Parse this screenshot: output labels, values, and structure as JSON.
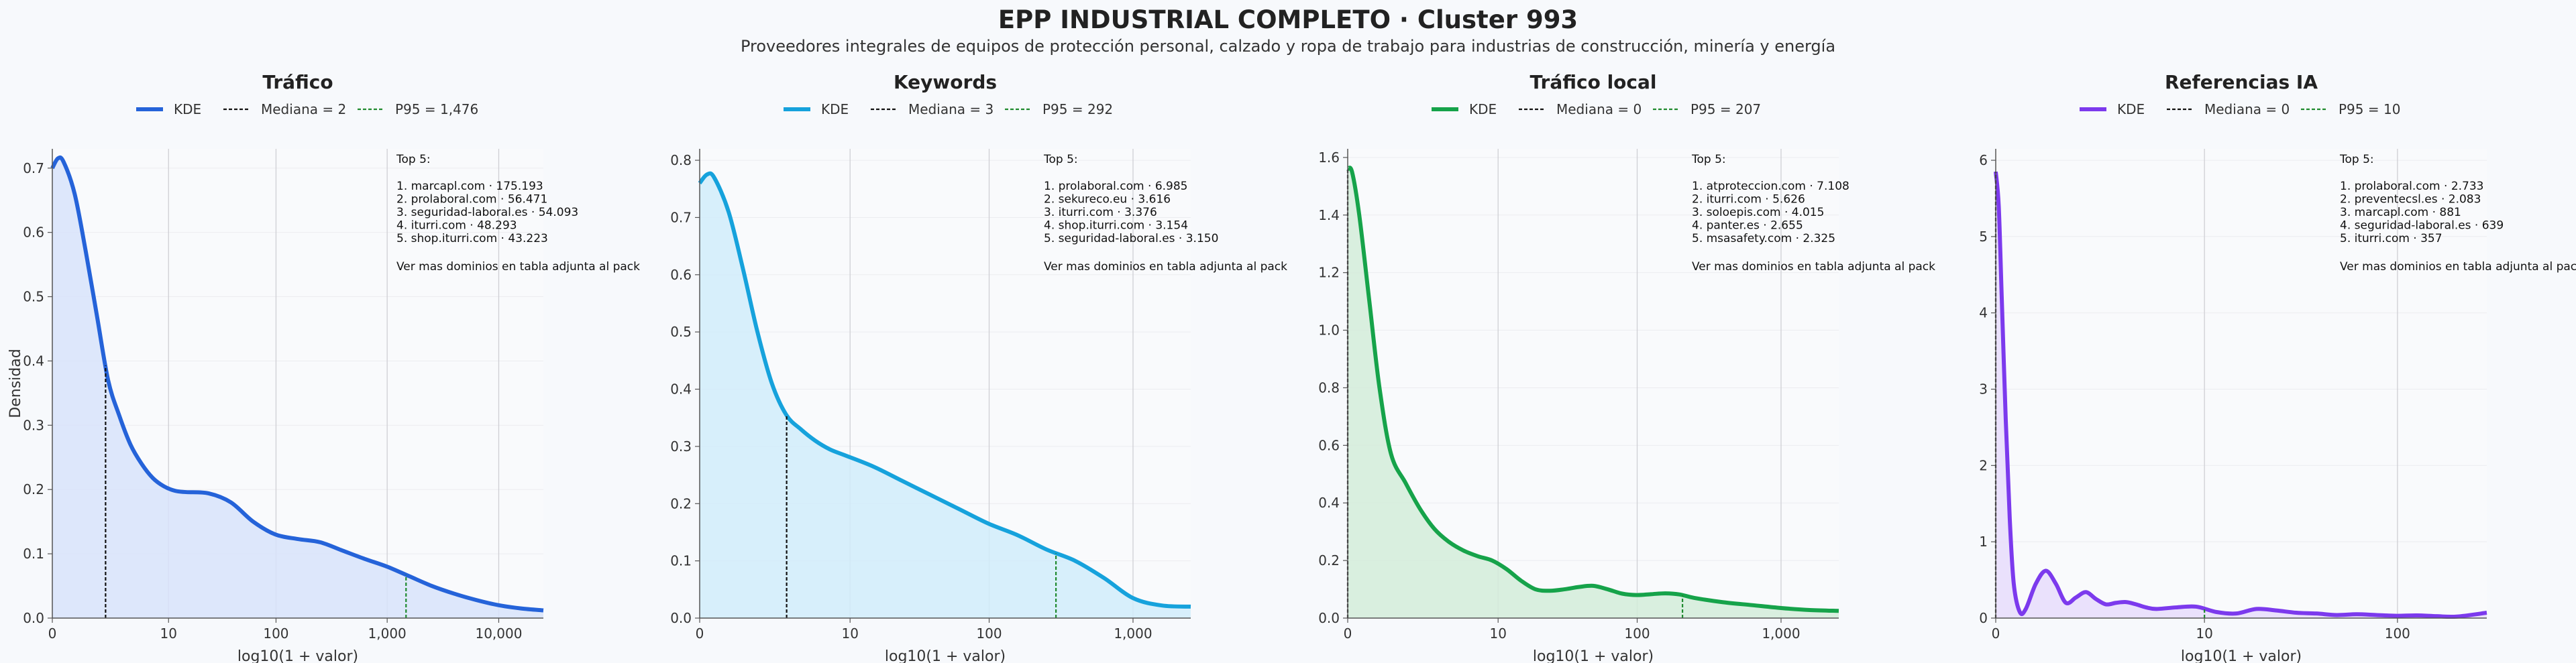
{
  "header": {
    "title": "EPP INDUSTRIAL COMPLETO · Cluster 993",
    "subtitle": "Proveedores integrales de equipos de protección personal, calzado y ropa de trabajo para industrias de construcción, minería y energía"
  },
  "chart_data": [
    {
      "type": "area",
      "title": "Tráfico",
      "xlabel": "log10(1 + valor)",
      "ylabel": "Densidad",
      "color": "#2563d9",
      "fill": "#d8e3fa",
      "x_scale": "log1p",
      "xlim": [
        0,
        4.4
      ],
      "ylim": [
        0,
        0.73
      ],
      "x_ticks": [
        0,
        10,
        100,
        1000,
        10000
      ],
      "x_tick_labels": [
        "0",
        "10",
        "100",
        "1,000",
        "10,000"
      ],
      "y_ticks": [
        0.0,
        0.1,
        0.2,
        0.3,
        0.4,
        0.5,
        0.6,
        0.7
      ],
      "y_tick_labels": [
        "0.0",
        "0.1",
        "0.2",
        "0.3",
        "0.4",
        "0.5",
        "0.6",
        "0.7"
      ],
      "grid": "vertical",
      "legend": [
        "KDE",
        "Mediana = 2",
        "P95 = 1,476"
      ],
      "median": 2,
      "p95": 1476,
      "series": [
        {
          "name": "KDE",
          "x": [
            0,
            0.05,
            0.1,
            0.2,
            0.3,
            0.4,
            0.5,
            0.6,
            0.7,
            0.8,
            0.9,
            1.0,
            1.1,
            1.2,
            1.4,
            1.6,
            1.8,
            2.0,
            2.2,
            2.4,
            2.6,
            2.8,
            3.0,
            3.2,
            3.4,
            3.6,
            3.8,
            4.0,
            4.2,
            4.4
          ],
          "y": [
            0.7,
            0.715,
            0.71,
            0.66,
            0.57,
            0.47,
            0.37,
            0.315,
            0.27,
            0.24,
            0.218,
            0.205,
            0.198,
            0.196,
            0.194,
            0.18,
            0.15,
            0.13,
            0.123,
            0.118,
            0.105,
            0.092,
            0.08,
            0.065,
            0.05,
            0.038,
            0.028,
            0.02,
            0.015,
            0.012
          ]
        }
      ],
      "annotation": {
        "heading": "Top 5:",
        "items": [
          "1. marcapl.com · 175.193",
          "2. prolaboral.com · 56.471",
          "3. seguridad-laboral.es · 54.093",
          "4. iturri.com · 48.293",
          "5. shop.iturri.com · 43.223"
        ],
        "footer": "Ver mas dominios en tabla adjunta al pack"
      }
    },
    {
      "type": "area",
      "title": "Keywords",
      "xlabel": "log10(1 + valor)",
      "ylabel": "",
      "color": "#16a2dc",
      "fill": "#d1ecfa",
      "x_scale": "log1p",
      "xlim": [
        0,
        3.4
      ],
      "ylim": [
        0,
        0.82
      ],
      "x_ticks": [
        0,
        10,
        100,
        1000
      ],
      "x_tick_labels": [
        "0",
        "10",
        "100",
        "1,000"
      ],
      "y_ticks": [
        0.0,
        0.1,
        0.2,
        0.3,
        0.4,
        0.5,
        0.6,
        0.7,
        0.8
      ],
      "y_tick_labels": [
        "0.0",
        "0.1",
        "0.2",
        "0.3",
        "0.4",
        "0.5",
        "0.6",
        "0.7",
        "0.8"
      ],
      "grid": "vertical",
      "legend": [
        "KDE",
        "Mediana = 3",
        "P95 = 292"
      ],
      "median": 3,
      "p95": 292,
      "series": [
        {
          "name": "KDE",
          "x": [
            0,
            0.05,
            0.1,
            0.2,
            0.3,
            0.4,
            0.5,
            0.6,
            0.7,
            0.8,
            0.9,
            1.0,
            1.2,
            1.4,
            1.6,
            1.8,
            2.0,
            2.2,
            2.4,
            2.6,
            2.8,
            3.0,
            3.2,
            3.4
          ],
          "y": [
            0.76,
            0.775,
            0.77,
            0.71,
            0.61,
            0.5,
            0.41,
            0.355,
            0.33,
            0.31,
            0.295,
            0.285,
            0.265,
            0.24,
            0.215,
            0.19,
            0.165,
            0.145,
            0.12,
            0.1,
            0.07,
            0.035,
            0.022,
            0.02
          ]
        }
      ],
      "annotation": {
        "heading": "Top 5:",
        "items": [
          "1. prolaboral.com · 6.985",
          "2. sekureco.eu · 3.616",
          "3. iturri.com · 3.376",
          "4. shop.iturri.com · 3.154",
          "5. seguridad-laboral.es · 3.150"
        ],
        "footer": "Ver mas dominios en tabla adjunta al pack"
      }
    },
    {
      "type": "area",
      "title": "Tráfico local",
      "xlabel": "log10(1 + valor)",
      "ylabel": "",
      "color": "#16a34a",
      "fill": "#d3ecd9",
      "x_scale": "log1p",
      "xlim": [
        0,
        3.4
      ],
      "ylim": [
        0,
        1.63
      ],
      "x_ticks": [
        0,
        10,
        100,
        1000
      ],
      "x_tick_labels": [
        "0",
        "10",
        "100",
        "1,000"
      ],
      "y_ticks": [
        0.0,
        0.2,
        0.4,
        0.6,
        0.8,
        1.0,
        1.2,
        1.4,
        1.6
      ],
      "y_tick_labels": [
        "0.0",
        "0.2",
        "0.4",
        "0.6",
        "0.8",
        "1.0",
        "1.2",
        "1.4",
        "1.6"
      ],
      "grid": "vertical",
      "legend": [
        "KDE",
        "Mediana = 0",
        "P95 = 207"
      ],
      "median": 0,
      "p95": 207,
      "series": [
        {
          "name": "KDE",
          "x": [
            0,
            0.03,
            0.08,
            0.15,
            0.22,
            0.3,
            0.4,
            0.5,
            0.6,
            0.7,
            0.8,
            0.9,
            1.0,
            1.1,
            1.2,
            1.3,
            1.4,
            1.5,
            1.6,
            1.7,
            1.8,
            1.9,
            2.0,
            2.1,
            2.2,
            2.3,
            2.4,
            2.6,
            2.8,
            3.0,
            3.2,
            3.4
          ],
          "y": [
            1.56,
            1.55,
            1.4,
            1.1,
            0.8,
            0.57,
            0.47,
            0.38,
            0.31,
            0.265,
            0.235,
            0.215,
            0.2,
            0.17,
            0.13,
            0.1,
            0.095,
            0.1,
            0.108,
            0.112,
            0.1,
            0.085,
            0.08,
            0.083,
            0.086,
            0.082,
            0.07,
            0.055,
            0.045,
            0.035,
            0.028,
            0.025
          ]
        }
      ],
      "annotation": {
        "heading": "Top 5:",
        "items": [
          "1. atproteccion.com · 7.108",
          "2. iturri.com · 5.626",
          "3. soloepis.com · 4.015",
          "4. panter.es · 2.655",
          "5. msasafety.com · 2.325"
        ],
        "footer": "Ver mas dominios en tabla adjunta al pack"
      }
    },
    {
      "type": "area",
      "title": "Referencias IA",
      "xlabel": "log10(1 + valor)",
      "ylabel": "",
      "color": "#7c3aed",
      "fill": "#e8dcfb",
      "x_scale": "log1p",
      "xlim": [
        0,
        2.45
      ],
      "ylim": [
        0,
        6.15
      ],
      "x_ticks": [
        0,
        10,
        100
      ],
      "x_tick_labels": [
        "0",
        "10",
        "100"
      ],
      "y_ticks": [
        0,
        1,
        2,
        3,
        4,
        5,
        6
      ],
      "y_tick_labels": [
        "0",
        "1",
        "2",
        "3",
        "4",
        "5",
        "6"
      ],
      "grid": "vertical",
      "legend": [
        "KDE",
        "Mediana = 0",
        "P95 = 10"
      ],
      "median": 0,
      "p95": 10,
      "series": [
        {
          "name": "KDE",
          "x": [
            0,
            0.015,
            0.03,
            0.05,
            0.07,
            0.09,
            0.12,
            0.15,
            0.2,
            0.25,
            0.3,
            0.35,
            0.4,
            0.45,
            0.5,
            0.55,
            0.6,
            0.65,
            0.7,
            0.75,
            0.8,
            0.9,
            1.0,
            1.1,
            1.2,
            1.3,
            1.4,
            1.5,
            1.6,
            1.7,
            1.8,
            1.9,
            2.0,
            2.1,
            2.2,
            2.3,
            2.45
          ],
          "y": [
            5.85,
            5.4,
            4.2,
            2.6,
            1.3,
            0.45,
            0.08,
            0.12,
            0.45,
            0.62,
            0.45,
            0.2,
            0.27,
            0.34,
            0.25,
            0.18,
            0.2,
            0.21,
            0.18,
            0.14,
            0.12,
            0.14,
            0.15,
            0.08,
            0.06,
            0.12,
            0.1,
            0.07,
            0.06,
            0.04,
            0.05,
            0.04,
            0.03,
            0.035,
            0.025,
            0.02,
            0.07
          ]
        }
      ],
      "annotation": {
        "heading": "Top 5:",
        "items": [
          "1. prolaboral.com · 2.733",
          "2. preventecsl.es · 2.083",
          "3. marcapl.com · 881",
          "4. seguridad-laboral.es · 639",
          "5. iturri.com · 357"
        ],
        "footer": "Ver mas dominios en tabla adjunta al pack"
      }
    }
  ]
}
